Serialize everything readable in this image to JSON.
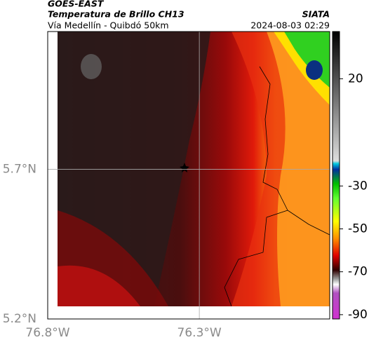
{
  "header": {
    "title": "GOES-EAST",
    "subtitle": "Temperatura de Brillo CH13",
    "source": "SIATA",
    "left_caption": "Vía Medellín - Quibdó 50km",
    "timestamp": "2024-08-03 02:29"
  },
  "map": {
    "xlim": [
      -76.8,
      -75.87
    ],
    "ylim": [
      5.2,
      6.16
    ],
    "xticks": [
      {
        "value": -76.8,
        "label": "76.8°W"
      },
      {
        "value": -76.3,
        "label": "76.3°W"
      }
    ],
    "yticks": [
      {
        "value": 5.2,
        "label": "5.2°N"
      },
      {
        "value": 5.7,
        "label": "5.7°N"
      }
    ],
    "grid": true
  },
  "colorbar": {
    "lim": [
      -92,
      42
    ],
    "ticks": [
      20,
      -30,
      -50,
      -70,
      -90
    ]
  }
}
